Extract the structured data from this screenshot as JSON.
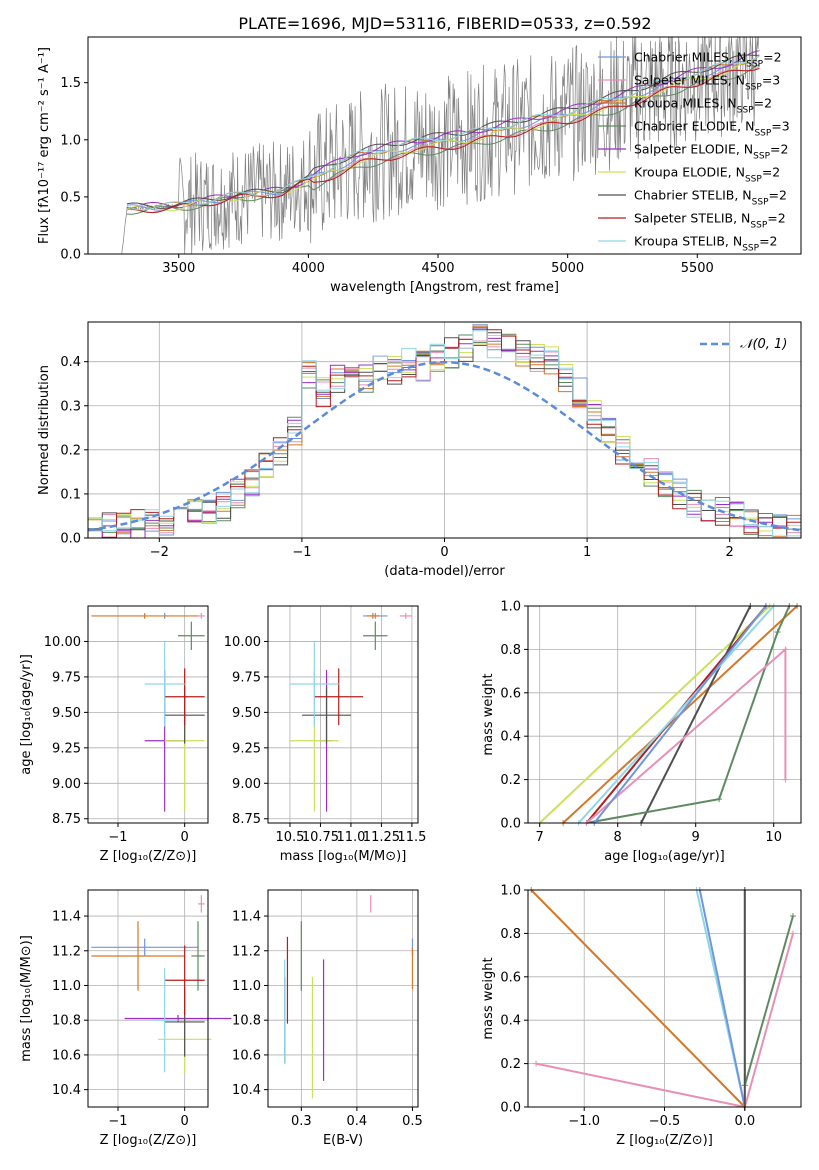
{
  "figure_title": "PLATE=1696, MJD=53116, FIBERID=0533, z=0.592",
  "colors": {
    "chabrier_miles": "#6f96de",
    "salpeter_miles": "#e88fb5",
    "kroupa_miles": "#d4772a",
    "chabrier_elodie": "#5e8a62",
    "salpeter_elodie": "#9b2fc4",
    "kroupa_elodie": "#cde05a",
    "chabrier_stelib": "#505050",
    "salpeter_stelib": "#b21e1e",
    "kroupa_stelib": "#8fd6e6",
    "data_spectrum": "#808080"
  },
  "chart_data": [
    {
      "id": "spectrum",
      "type": "line",
      "xlabel": "wavelength [Angstrom, rest frame]",
      "ylabel": "Flux [fλ10⁻¹⁷ erg cm⁻² s⁻¹ A⁻¹]",
      "xlim": [
        3150,
        5900
      ],
      "ylim": [
        0,
        1.9
      ],
      "xticks": [
        "3500",
        "4000",
        "4500",
        "5000",
        "5500"
      ],
      "yticks": [
        "0.0",
        "0.5",
        "1.0",
        "1.5"
      ],
      "legend": "upper right",
      "data_note_points_x": [
        3200,
        3280,
        3300,
        3500,
        3700,
        3900,
        4000,
        4200,
        4400,
        4600,
        4800,
        5000,
        5200,
        5400,
        5600,
        5750
      ],
      "model_y": [
        0.0,
        0.0,
        0.4,
        0.42,
        0.5,
        0.55,
        0.65,
        0.85,
        0.95,
        1.02,
        1.12,
        1.22,
        1.35,
        1.5,
        1.62,
        1.72
      ],
      "series": [
        {
          "key": "chabrier_miles",
          "name": "Chabrier MILES, N",
          "sub": "SSP",
          "suffix": "=2"
        },
        {
          "key": "salpeter_miles",
          "name": "Salpeter MILES, N",
          "sub": "SSP",
          "suffix": "=3"
        },
        {
          "key": "kroupa_miles",
          "name": "Kroupa MILES, N",
          "sub": "SSP",
          "suffix": "=2"
        },
        {
          "key": "chabrier_elodie",
          "name": "Chabrier ELODIE, N",
          "sub": "SSP",
          "suffix": "=3"
        },
        {
          "key": "salpeter_elodie",
          "name": "Salpeter ELODIE, N",
          "sub": "SSP",
          "suffix": "=2"
        },
        {
          "key": "kroupa_elodie",
          "name": "Kroupa ELODIE, N",
          "sub": "SSP",
          "suffix": "=2"
        },
        {
          "key": "chabrier_stelib",
          "name": "Chabrier STELIB, N",
          "sub": "SSP",
          "suffix": "=2"
        },
        {
          "key": "salpeter_stelib",
          "name": "Salpeter STELIB, N",
          "sub": "SSP",
          "suffix": "=2"
        },
        {
          "key": "kroupa_stelib",
          "name": "Kroupa STELIB, N",
          "sub": "SSP",
          "suffix": "=2"
        }
      ]
    },
    {
      "id": "residuals",
      "type": "line",
      "xlabel": "(data-model)/error",
      "ylabel": "Normed distribution",
      "xlim": [
        -2.5,
        2.5
      ],
      "ylim": [
        0,
        0.49
      ],
      "xticks": [
        "−2",
        "−1",
        "0",
        "1",
        "2"
      ],
      "yticks": [
        "0.0",
        "0.1",
        "0.2",
        "0.3",
        "0.4"
      ],
      "legend_label": "𝒩(0, 1)",
      "bin_centers": [
        -2.45,
        -2.35,
        -2.25,
        -2.15,
        -2.05,
        -1.95,
        -1.85,
        -1.75,
        -1.65,
        -1.55,
        -1.45,
        -1.35,
        -1.25,
        -1.15,
        -1.05,
        -0.95,
        -0.85,
        -0.75,
        -0.65,
        -0.55,
        -0.45,
        -0.35,
        -0.25,
        -0.15,
        -0.05,
        0.05,
        0.15,
        0.25,
        0.35,
        0.45,
        0.55,
        0.65,
        0.75,
        0.85,
        0.95,
        1.05,
        1.15,
        1.25,
        1.35,
        1.45,
        1.55,
        1.65,
        1.75,
        1.85,
        1.95,
        2.05,
        2.15,
        2.25,
        2.35,
        2.45
      ],
      "hist_values": [
        0.02,
        0.03,
        0.03,
        0.03,
        0.04,
        0.04,
        0.05,
        0.06,
        0.06,
        0.07,
        0.1,
        0.12,
        0.16,
        0.2,
        0.24,
        0.37,
        0.33,
        0.36,
        0.37,
        0.36,
        0.39,
        0.38,
        0.4,
        0.39,
        0.41,
        0.42,
        0.43,
        0.45,
        0.44,
        0.43,
        0.42,
        0.41,
        0.4,
        0.36,
        0.33,
        0.28,
        0.24,
        0.2,
        0.18,
        0.15,
        0.12,
        0.1,
        0.08,
        0.07,
        0.06,
        0.05,
        0.04,
        0.03,
        0.03,
        0.02
      ]
    },
    {
      "id": "age_vs_Z",
      "type": "scatter",
      "xlabel": "Z [log₁₀(Z/Z⊙)]",
      "ylabel": "age  [log₁₀(age/yr)]",
      "xlim": [
        -1.45,
        0.35
      ],
      "ylim": [
        8.72,
        10.25
      ],
      "xticks": [
        "−1",
        "0"
      ],
      "yticks": [
        "8.75",
        "9.00",
        "9.25",
        "9.50",
        "9.75",
        "10.00"
      ],
      "points": [
        {
          "key": "chabrier_miles",
          "x": -0.3,
          "y": 10.18,
          "xerr": 0.0,
          "yerr": 0.02
        },
        {
          "key": "salpeter_miles",
          "x": 0.25,
          "y": 10.18,
          "xerr": 0.05,
          "yerr": 0.02
        },
        {
          "key": "kroupa_miles",
          "x": -0.6,
          "y": 10.18,
          "xerr": 0.8,
          "yerr": 0.02
        },
        {
          "key": "chabrier_elodie",
          "x": 0.1,
          "y": 10.04,
          "xerr": 0.2,
          "yerr": 0.1
        },
        {
          "key": "salpeter_elodie",
          "x": -0.3,
          "y": 9.3,
          "xerr": 0.3,
          "yerr": 0.5
        },
        {
          "key": "kroupa_elodie",
          "x": 0.0,
          "y": 9.3,
          "xerr": 0.3,
          "yerr": 0.5
        },
        {
          "key": "chabrier_stelib",
          "x": 0.0,
          "y": 9.48,
          "xerr": 0.3,
          "yerr": 0.2
        },
        {
          "key": "salpeter_stelib",
          "x": 0.0,
          "y": 9.61,
          "xerr": 0.3,
          "yerr": 0.2
        },
        {
          "key": "kroupa_stelib",
          "x": -0.3,
          "y": 9.7,
          "xerr": 0.3,
          "yerr": 0.3
        }
      ]
    },
    {
      "id": "age_vs_mass",
      "type": "scatter",
      "xlabel": "mass [log₁₀(M/M⊙)]",
      "xlim": [
        10.32,
        11.55
      ],
      "ylim": [
        8.72,
        10.25
      ],
      "xticks": [
        "10.5",
        "10.75",
        "11.0",
        "11.25",
        "11.5"
      ],
      "yticks": [
        "8.75",
        "9.00",
        "9.25",
        "9.50",
        "9.75",
        "10.00"
      ],
      "points": [
        {
          "key": "chabrier_miles",
          "x": 11.2,
          "y": 10.18,
          "xerr": 0.1,
          "yerr": 0.02
        },
        {
          "key": "salpeter_miles",
          "x": 11.45,
          "y": 10.18,
          "xerr": 0.05,
          "yerr": 0.02
        },
        {
          "key": "kroupa_miles",
          "x": 11.18,
          "y": 10.18,
          "xerr": 0.05,
          "yerr": 0.02
        },
        {
          "key": "chabrier_elodie",
          "x": 11.2,
          "y": 10.04,
          "xerr": 0.1,
          "yerr": 0.1
        },
        {
          "key": "salpeter_elodie",
          "x": 10.8,
          "y": 9.3,
          "xerr": 0.05,
          "yerr": 0.5
        },
        {
          "key": "kroupa_elodie",
          "x": 10.7,
          "y": 9.3,
          "xerr": 0.2,
          "yerr": 0.5
        },
        {
          "key": "chabrier_stelib",
          "x": 10.8,
          "y": 9.48,
          "xerr": 0.2,
          "yerr": 0.2
        },
        {
          "key": "salpeter_stelib",
          "x": 10.9,
          "y": 9.61,
          "xerr": 0.2,
          "yerr": 0.2
        },
        {
          "key": "kroupa_stelib",
          "x": 10.7,
          "y": 9.7,
          "xerr": 0.2,
          "yerr": 0.3
        }
      ]
    },
    {
      "id": "weight_vs_age",
      "type": "line",
      "xlabel": "age  [log₁₀(age/yr)]",
      "ylabel": "mass weight",
      "xlim": [
        6.85,
        10.35
      ],
      "ylim": [
        0,
        1
      ],
      "xticks": [
        "7",
        "8",
        "9",
        "10"
      ],
      "yticks": [
        "0.0",
        "0.2",
        "0.4",
        "0.6",
        "0.8",
        "1.0"
      ],
      "series": [
        {
          "key": "kroupa_elodie",
          "x": [
            7.0,
            9.95
          ],
          "y": [
            0.0,
            1.0
          ]
        },
        {
          "key": "kroupa_miles",
          "x": [
            7.3,
            10.3
          ],
          "y": [
            0.0,
            1.0
          ]
        },
        {
          "key": "salpeter_stelib",
          "x": [
            7.6,
            9.9
          ],
          "y": [
            0.0,
            1.0
          ]
        },
        {
          "key": "chabrier_stelib",
          "x": [
            8.3,
            9.7
          ],
          "y": [
            0.0,
            1.0
          ]
        },
        {
          "key": "kroupa_stelib",
          "x": [
            7.5,
            10.0
          ],
          "y": [
            0.0,
            1.0
          ]
        },
        {
          "key": "chabrier_elodie",
          "x": [
            7.6,
            9.3,
            10.05,
            10.2
          ],
          "y": [
            0.0,
            0.11,
            0.88,
            1.0
          ]
        },
        {
          "key": "salpeter_miles",
          "x": [
            7.6,
            10.15,
            10.15
          ],
          "y": [
            0.0,
            0.8,
            0.2
          ]
        },
        {
          "key": "chabrier_miles",
          "x": [
            7.7,
            9.9
          ],
          "y": [
            0.0,
            1.0
          ]
        }
      ]
    },
    {
      "id": "mass_vs_Z",
      "type": "scatter",
      "xlabel": "Z [log₁₀(Z/Z⊙)]",
      "ylabel": "mass [log₁₀(M/M⊙)]",
      "xlim": [
        -1.45,
        0.35
      ],
      "ylim": [
        10.3,
        11.55
      ],
      "xticks": [
        "−1",
        "0"
      ],
      "yticks": [
        "10.4",
        "10.6",
        "10.8",
        "11.0",
        "11.2",
        "11.4"
      ],
      "points": [
        {
          "key": "chabrier_miles",
          "x": -0.6,
          "y": 11.22,
          "xerr": 0.8,
          "yerr": 0.05
        },
        {
          "key": "salpeter_miles",
          "x": 0.25,
          "y": 11.47,
          "xerr": 0.05,
          "yerr": 0.05
        },
        {
          "key": "kroupa_miles",
          "x": -0.7,
          "y": 11.17,
          "xerr": 0.7,
          "yerr": 0.2
        },
        {
          "key": "chabrier_elodie",
          "x": 0.2,
          "y": 11.17,
          "xerr": 0.1,
          "yerr": 0.2
        },
        {
          "key": "salpeter_elodie",
          "x": -0.1,
          "y": 10.81,
          "xerr": 0.8,
          "yerr": 0.02
        },
        {
          "key": "kroupa_elodie",
          "x": 0.0,
          "y": 10.69,
          "xerr": 0.4,
          "yerr": 0.2
        },
        {
          "key": "chabrier_stelib",
          "x": 0.0,
          "y": 10.79,
          "xerr": 0.3,
          "yerr": 0.2
        },
        {
          "key": "salpeter_stelib",
          "x": 0.0,
          "y": 11.03,
          "xerr": 0.3,
          "yerr": 0.2
        },
        {
          "key": "kroupa_stelib",
          "x": -0.3,
          "y": 10.8,
          "xerr": 0.2,
          "yerr": 0.3
        }
      ]
    },
    {
      "id": "mass_vs_ebv",
      "type": "scatter",
      "xlabel": "E(B-V)",
      "xlim": [
        0.24,
        0.51
      ],
      "ylim": [
        10.3,
        11.55
      ],
      "xticks": [
        "0.3",
        "0.4",
        "0.5"
      ],
      "yticks": [
        "10.4",
        "10.6",
        "10.8",
        "11.0",
        "11.2",
        "11.4"
      ],
      "points": [
        {
          "key": "chabrier_miles",
          "x": 0.5,
          "y": 11.22,
          "xerr": 0,
          "yerr": 0.05
        },
        {
          "key": "salpeter_miles",
          "x": 0.425,
          "y": 11.47,
          "xerr": 0,
          "yerr": 0.05
        },
        {
          "key": "kroupa_miles",
          "x": 0.5,
          "y": 11.1,
          "xerr": 0,
          "yerr": 0.12
        },
        {
          "key": "chabrier_elodie",
          "x": 0.3,
          "y": 11.17,
          "xerr": 0,
          "yerr": 0.2
        },
        {
          "key": "salpeter_elodie",
          "x": 0.34,
          "y": 10.8,
          "xerr": 0,
          "yerr": 0.35
        },
        {
          "key": "kroupa_elodie",
          "x": 0.32,
          "y": 10.7,
          "xerr": 0,
          "yerr": 0.35
        },
        {
          "key": "chabrier_stelib",
          "x": 0.27,
          "y": 10.8,
          "xerr": 0,
          "yerr": 0.25
        },
        {
          "key": "salpeter_stelib",
          "x": 0.275,
          "y": 11.03,
          "xerr": 0,
          "yerr": 0.25
        },
        {
          "key": "kroupa_stelib",
          "x": 0.27,
          "y": 10.85,
          "xerr": 0,
          "yerr": 0.3
        }
      ]
    },
    {
      "id": "weight_vs_Z",
      "type": "line",
      "xlabel": "Z [log₁₀(Z/Z⊙)]",
      "ylabel": "mass weight",
      "xlim": [
        -1.35,
        0.35
      ],
      "ylim": [
        0,
        1
      ],
      "xticks": [
        "−1.0",
        "−0.5",
        "0.0"
      ],
      "yticks": [
        "0.0",
        "0.2",
        "0.4",
        "0.6",
        "0.8",
        "1.0"
      ],
      "series": [
        {
          "key": "kroupa_miles",
          "x": [
            -1.33,
            0.0
          ],
          "y": [
            1.0,
            0.0
          ]
        },
        {
          "key": "salpeter_miles",
          "x": [
            -1.3,
            0.0,
            0.3
          ],
          "y": [
            0.2,
            0.0,
            0.8
          ]
        },
        {
          "key": "chabrier_elodie",
          "x": [
            0.0,
            0.3
          ],
          "y": [
            0.1,
            0.88
          ]
        },
        {
          "key": "kroupa_stelib",
          "x": [
            -0.3,
            0.0
          ],
          "y": [
            1.0,
            0.0
          ]
        },
        {
          "key": "chabrier_miles",
          "x": [
            -0.28,
            0.0
          ],
          "y": [
            1.0,
            0.0
          ]
        },
        {
          "key": "kroupa_elodie",
          "x": [
            0.0,
            0.0
          ],
          "y": [
            0.0,
            1.0
          ]
        },
        {
          "key": "chabrier_stelib",
          "x": [
            0.0,
            0.0
          ],
          "y": [
            0.0,
            1.0
          ]
        }
      ]
    }
  ]
}
